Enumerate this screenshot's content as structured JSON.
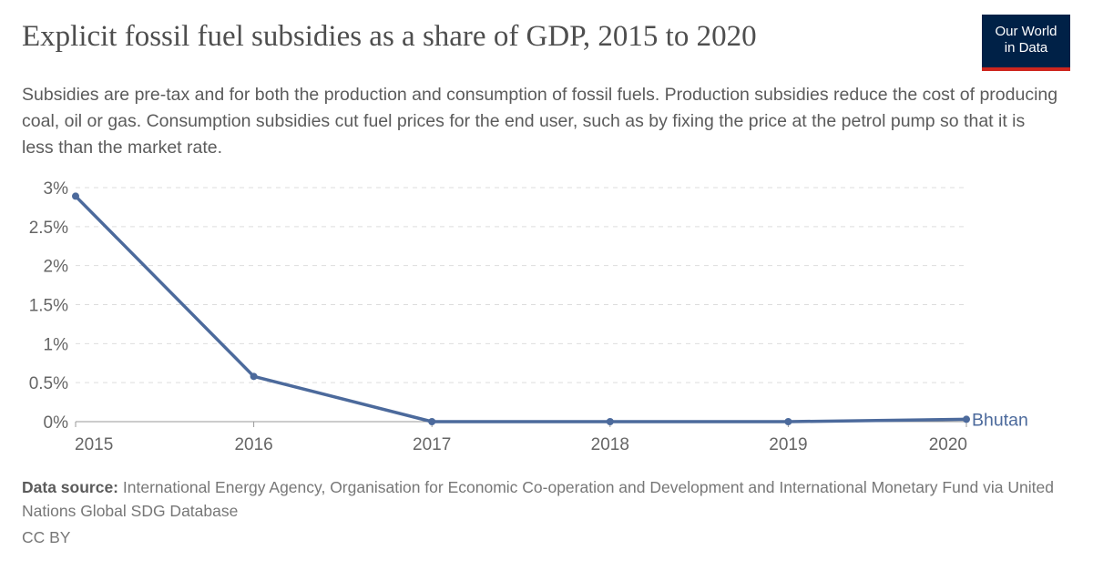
{
  "title": "Explicit fossil fuel subsidies as a share of GDP, 2015 to 2020",
  "subtitle": "Subsidies are pre-tax and for both the production and consumption of fossil fuels. Production subsidies reduce the cost of producing coal, oil or gas. Consumption subsidies cut fuel prices for the end user, such as by fixing the price at the petrol pump so that it is less than the market rate.",
  "logo": {
    "line1": "Our World",
    "line2": "in Data"
  },
  "footer": {
    "source_label": "Data source:",
    "source_text": " International Energy Agency, Organisation for Economic Co-operation and Development and International Monetary Fund via United Nations Global SDG Database",
    "license": "CC BY"
  },
  "chart_data": {
    "type": "line",
    "x": [
      2015,
      2016,
      2017,
      2018,
      2019,
      2020
    ],
    "series": [
      {
        "name": "Bhutan",
        "values": [
          2.89,
          0.58,
          0,
          0,
          0,
          0.03
        ],
        "color": "#4c6a9c"
      }
    ],
    "yticks": [
      "0%",
      "0.5%",
      "1%",
      "1.5%",
      "2%",
      "2.5%",
      "3%"
    ],
    "xticks": [
      "2015",
      "2016",
      "2017",
      "2018",
      "2019",
      "2020"
    ],
    "ylim": [
      0,
      3
    ],
    "grid": true,
    "legend": "inline-right"
  }
}
